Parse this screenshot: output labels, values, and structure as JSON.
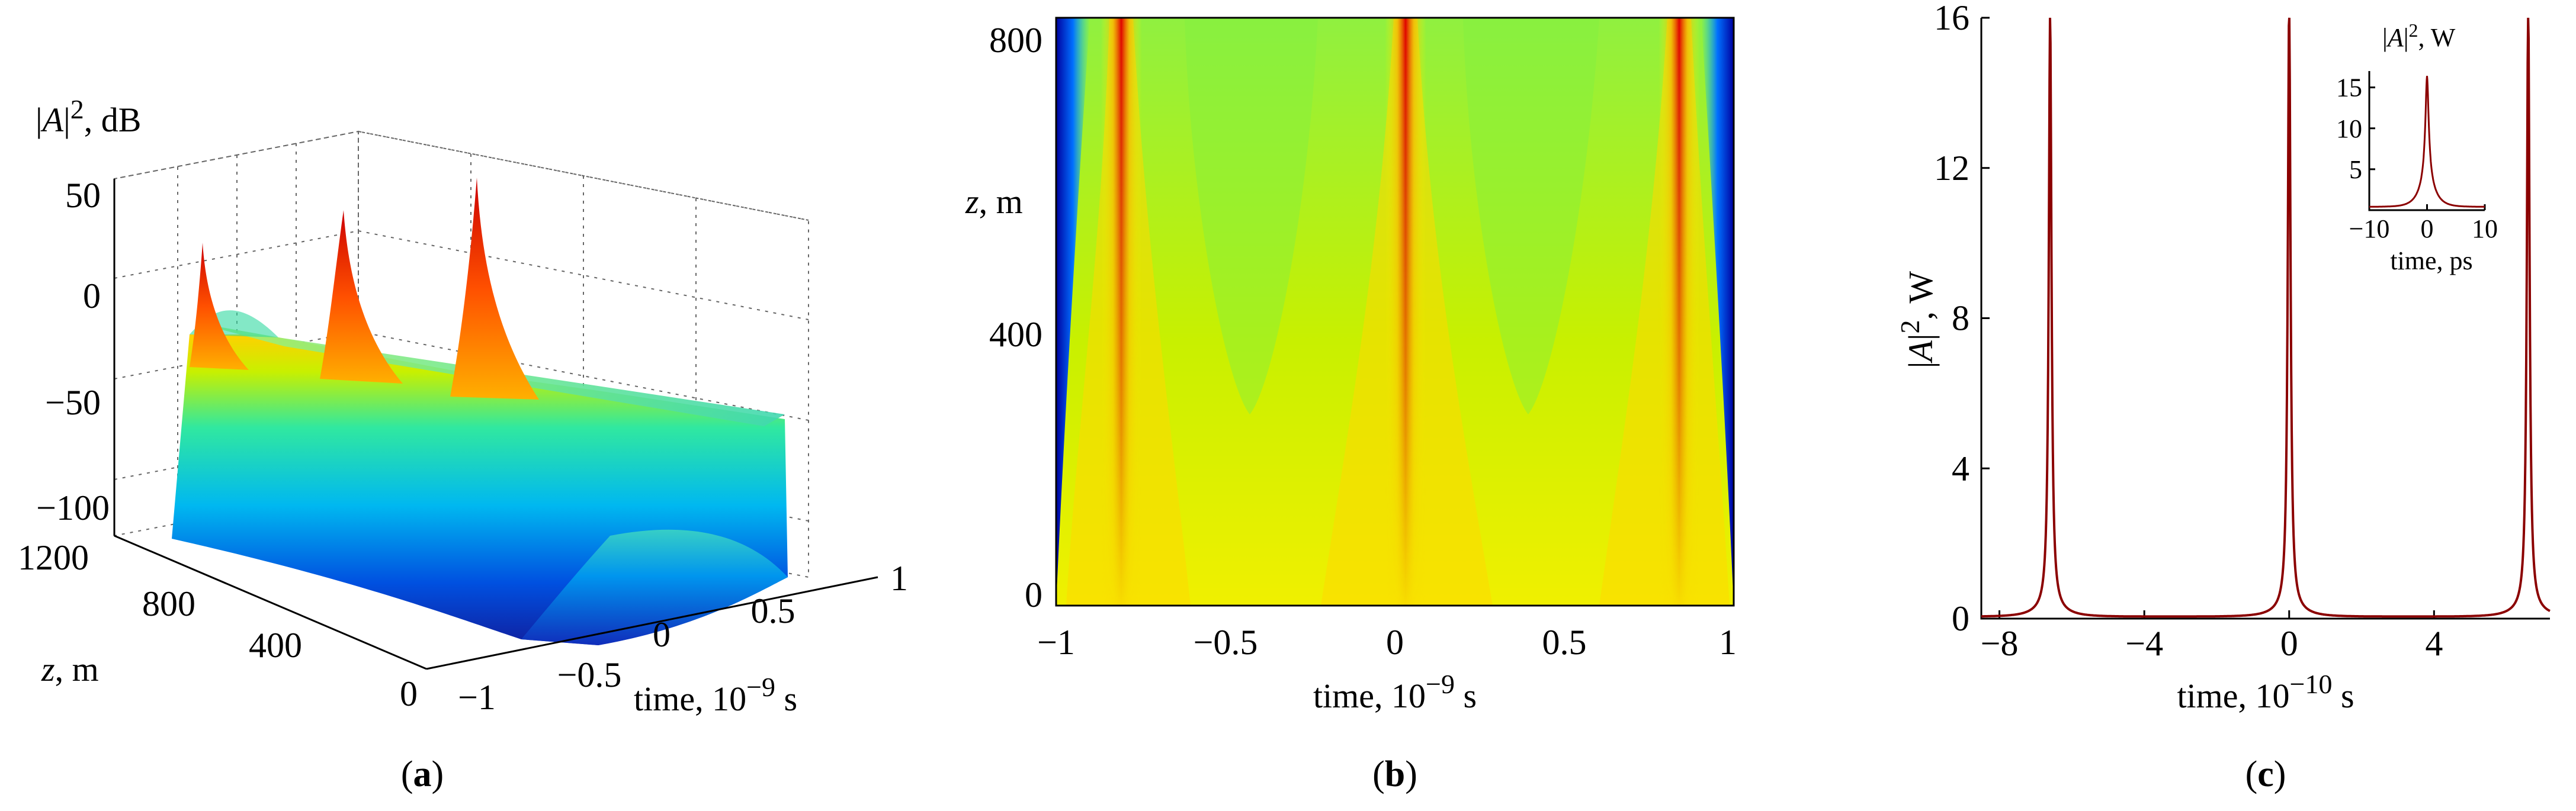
{
  "chart_data": [
    {
      "panel": "a",
      "type": "surface",
      "zlabel_var": "A",
      "zlabel_unit": "dB",
      "xlabel": "time, 10",
      "xlabel_exp": "−9",
      "xlabel_unit": "s",
      "ylabel_var": "z",
      "ylabel_unit": "m",
      "xlim": [
        -1,
        1
      ],
      "ylim": [
        0,
        1200
      ],
      "zlim": [
        -100,
        50
      ],
      "xticks": [
        "−1",
        "−0.5",
        "0",
        "0.5",
        "1"
      ],
      "yticks": [
        "0",
        "400",
        "800",
        "1200"
      ],
      "zticks": [
        "50",
        "0",
        "−50",
        "−100"
      ],
      "pulse_peaks_time": [
        -0.8,
        0,
        0.8
      ],
      "peak_power_db": [
        22,
        36,
        44
      ],
      "background_power_db": -45,
      "edge_power_db": -100,
      "grid": true,
      "colormap": "jet",
      "caption": "a"
    },
    {
      "panel": "b",
      "type": "heatmap",
      "xlabel": "time, 10",
      "xlabel_exp": "−9",
      "xlabel_unit": "s",
      "ylabel_var": "z",
      "ylabel_unit": "m",
      "xlim": [
        -1,
        1
      ],
      "ylim": [
        0,
        840
      ],
      "xticks": [
        "−1",
        "−0.5",
        "0",
        "0.5",
        "1"
      ],
      "yticks": [
        "0",
        "400",
        "800"
      ],
      "pulse_centers_time": [
        -0.8,
        0,
        0.8
      ],
      "colormap": "jet",
      "caption": "b"
    },
    {
      "panel": "c",
      "type": "line",
      "xlabel": "time, 10",
      "xlabel_exp": "−10",
      "xlabel_unit": "s",
      "ylabel_var": "A",
      "ylabel_unit": "W",
      "xlim": [
        -8.5,
        7.2
      ],
      "ylim": [
        0,
        16
      ],
      "xticks": [
        -8,
        -4,
        0,
        4
      ],
      "yticks": [
        0,
        4,
        8,
        12,
        16
      ],
      "line_color": "#8b0000",
      "series": [
        {
          "peaks": [
            {
              "x": -6.6,
              "y": 15.7
            },
            {
              "x": 0.0,
              "y": 16.0
            },
            {
              "x": 6.6,
              "y": 16.0
            }
          ],
          "background": 0.05
        }
      ],
      "inset": {
        "type": "line",
        "xlabel": "time, ps",
        "ylabel_var": "A",
        "ylabel_unit": "W",
        "xlim": [
          -10,
          10
        ],
        "ylim": [
          0,
          17
        ],
        "xticks": [
          "−10",
          "0",
          "10"
        ],
        "yticks": [
          "5",
          "10",
          "15"
        ],
        "peak": {
          "x": 0,
          "y": 16
        }
      },
      "caption": "c"
    }
  ]
}
